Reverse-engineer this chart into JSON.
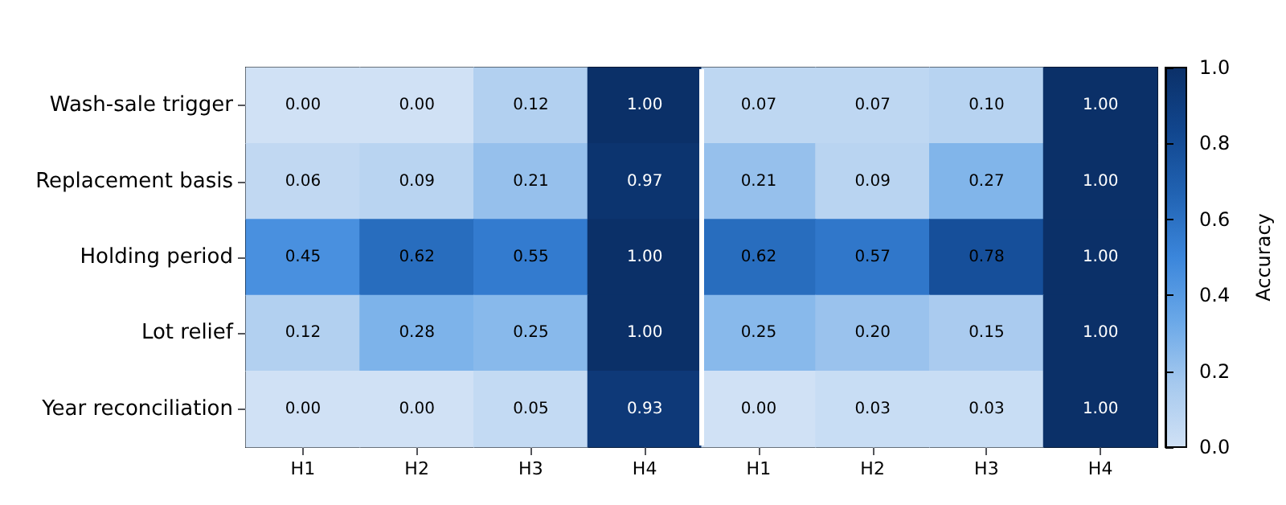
{
  "chart_data": {
    "type": "heatmap",
    "categories": [
      "H1",
      "H2",
      "H3",
      "H4",
      "H1",
      "H2",
      "H3",
      "H4"
    ],
    "y_categories": [
      "Wash-sale trigger",
      "Replacement basis",
      "Holding period",
      "Lot relief",
      "Year reconciliation"
    ],
    "cells": [
      [
        0.0,
        0.0,
        0.12,
        1.0,
        0.07,
        0.07,
        0.1,
        1.0
      ],
      [
        0.06,
        0.09,
        0.21,
        0.97,
        0.21,
        0.09,
        0.27,
        1.0
      ],
      [
        0.45,
        0.62,
        0.55,
        1.0,
        0.62,
        0.57,
        0.78,
        1.0
      ],
      [
        0.12,
        0.28,
        0.25,
        1.0,
        0.25,
        0.2,
        0.15,
        1.0
      ],
      [
        0.0,
        0.0,
        0.05,
        0.93,
        0.0,
        0.03,
        0.03,
        1.0
      ]
    ],
    "cell_labels": [
      [
        "0.00",
        "0.00",
        "0.12",
        "1.00",
        "0.07",
        "0.07",
        "0.10",
        "1.00"
      ],
      [
        "0.06",
        "0.09",
        "0.21",
        "0.97",
        "0.21",
        "0.09",
        "0.27",
        "1.00"
      ],
      [
        "0.45",
        "0.62",
        "0.55",
        "1.00",
        "0.62",
        "0.57",
        "0.78",
        "1.00"
      ],
      [
        "0.12",
        "0.28",
        "0.25",
        "1.00",
        "0.25",
        "0.20",
        "0.15",
        "1.00"
      ],
      [
        "0.00",
        "0.00",
        "0.05",
        "0.93",
        "0.00",
        "0.03",
        "0.03",
        "1.00"
      ]
    ],
    "clim": [
      0,
      1
    ],
    "clabel": "Accuracy",
    "cticks": [
      {
        "value": 0,
        "label": "0.0"
      },
      {
        "value": 0.2,
        "label": "0.2"
      },
      {
        "value": 0.4,
        "label": "0.4"
      },
      {
        "value": 0.6,
        "label": "0.6"
      },
      {
        "value": 0.8,
        "label": "0.8"
      },
      {
        "value": 1,
        "label": "1.0"
      }
    ]
  }
}
